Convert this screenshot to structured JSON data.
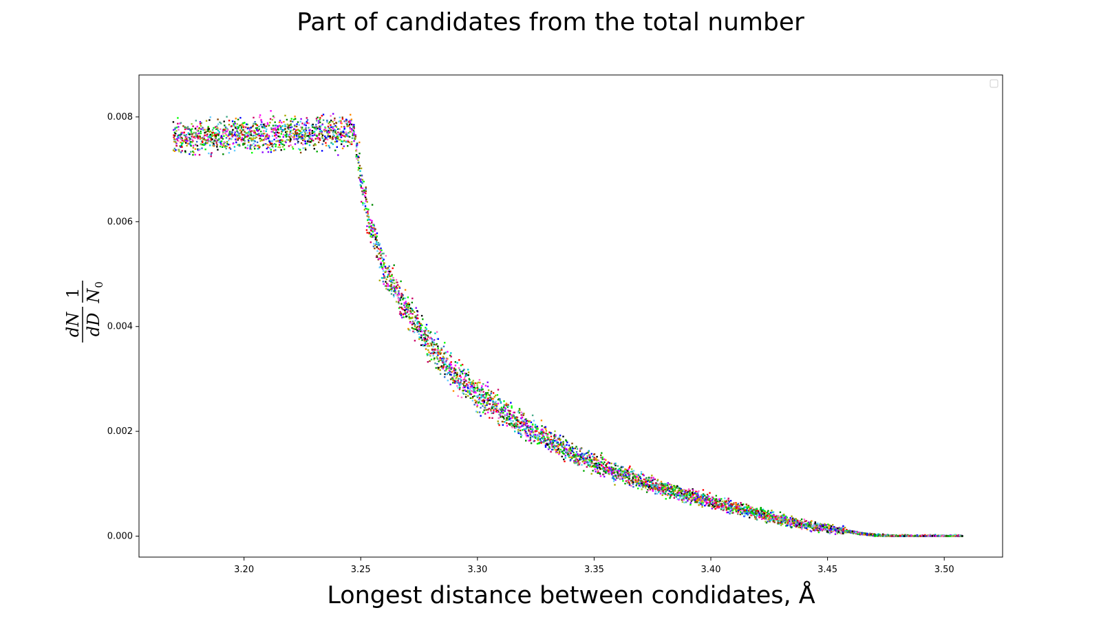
{
  "chart_data": {
    "type": "scatter",
    "title": "Part of candidates from the total number",
    "xlabel": "Longest distance between condidates, Å",
    "ylabel": "dN/dD · 1/N0",
    "ylabel_parts": {
      "num1": "dN",
      "den1": "dD",
      "num2": "1",
      "den2": "N",
      "den2_sub": "0"
    },
    "xlim": [
      3.155,
      3.525
    ],
    "ylim": [
      -0.0004,
      0.0088
    ],
    "xticks": [
      3.2,
      3.25,
      3.3,
      3.35,
      3.4,
      3.45,
      3.5
    ],
    "xtick_labels": [
      "3.20",
      "3.25",
      "3.30",
      "3.35",
      "3.40",
      "3.45",
      "3.50"
    ],
    "yticks": [
      0.0,
      0.002,
      0.004,
      0.006,
      0.008
    ],
    "ytick_labels": [
      "0.000",
      "0.002",
      "0.004",
      "0.006",
      "0.008"
    ],
    "legend": "top-right (empty)",
    "grid": false,
    "colors": [
      "#ff0000",
      "#00aa00",
      "#0000ff",
      "#ff00ff",
      "#00cccc",
      "#aaaa00",
      "#000000",
      "#8800ff",
      "#00ff00",
      "#ff8800",
      "#008800",
      "#ff66cc",
      "#66ccff",
      "#884400",
      "#44aa88",
      "#cc0066",
      "#99cc33",
      "#3366cc"
    ],
    "envelope": [
      [
        3.17,
        0.0076
      ],
      [
        3.2,
        0.00765
      ],
      [
        3.23,
        0.0077
      ],
      [
        3.247,
        0.00775
      ],
      [
        3.25,
        0.0068
      ],
      [
        3.253,
        0.0061
      ],
      [
        3.26,
        0.0051
      ],
      [
        3.27,
        0.0043
      ],
      [
        3.28,
        0.00365
      ],
      [
        3.29,
        0.0031
      ],
      [
        3.3,
        0.0027
      ],
      [
        3.31,
        0.0024
      ],
      [
        3.32,
        0.0021
      ],
      [
        3.33,
        0.00185
      ],
      [
        3.34,
        0.0016
      ],
      [
        3.35,
        0.0014
      ],
      [
        3.36,
        0.0012
      ],
      [
        3.37,
        0.00105
      ],
      [
        3.38,
        0.0009
      ],
      [
        3.39,
        0.00078
      ],
      [
        3.4,
        0.00066
      ],
      [
        3.41,
        0.00055
      ],
      [
        3.42,
        0.00043
      ],
      [
        3.43,
        0.00032
      ],
      [
        3.44,
        0.00022
      ],
      [
        3.45,
        0.00015
      ],
      [
        3.46,
        8e-05
      ],
      [
        3.47,
        2e-05
      ],
      [
        3.48,
        0.0
      ],
      [
        3.508,
        0.0
      ]
    ],
    "x_range": [
      3.17,
      3.508
    ],
    "scatter_spread": 0.0003,
    "points_per_x": 14,
    "x_step": 0.0009
  }
}
